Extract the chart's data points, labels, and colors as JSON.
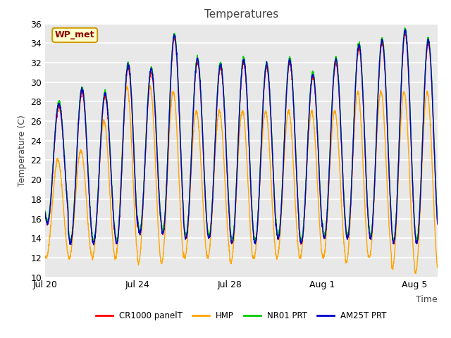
{
  "title": "Temperatures",
  "ylabel": "Temperature (C)",
  "xlabel": "Time",
  "annotation": "WP_met",
  "fig_bg_color": "#ffffff",
  "plot_bg_color": "#e8e8e8",
  "grid_color": "#ffffff",
  "ylim": [
    10,
    36
  ],
  "yticks": [
    10,
    12,
    14,
    16,
    18,
    20,
    22,
    24,
    26,
    28,
    30,
    32,
    34,
    36
  ],
  "xtick_labels": [
    "Jul 20",
    "Jul 24",
    "Jul 28",
    "Aug 1",
    "Aug 5"
  ],
  "xtick_positions": [
    0,
    4,
    8,
    12,
    16
  ],
  "series": [
    {
      "name": "CR1000 panelT",
      "color": "#ff0000",
      "lw": 1.0
    },
    {
      "name": "HMP",
      "color": "#ffa500",
      "lw": 1.0
    },
    {
      "name": "NR01 PRT",
      "color": "#00cc00",
      "lw": 1.0
    },
    {
      "name": "AM25T PRT",
      "color": "#0000cc",
      "lw": 1.0
    }
  ],
  "n_days": 17,
  "seed": 42,
  "day_maxes": [
    27.5,
    29.0,
    28.5,
    31.5,
    31.0,
    34.5,
    32.0,
    31.5,
    32.0,
    31.5,
    32.0,
    30.5,
    32.0,
    33.5,
    34.0,
    35.0,
    34.0
  ],
  "day_mines": [
    15.5,
    13.5,
    13.5,
    13.5,
    14.5,
    14.5,
    14.0,
    14.0,
    13.5,
    13.5,
    14.0,
    13.5,
    14.0,
    14.0,
    14.0,
    13.5,
    13.5
  ],
  "hmp_day_maxes": [
    22.0,
    23.0,
    26.0,
    29.5,
    29.5,
    29.0,
    27.0,
    27.0,
    27.0,
    27.0,
    27.0,
    27.0,
    27.0,
    29.0,
    29.0,
    29.0,
    29.0
  ],
  "hmp_day_mines": [
    12.0,
    12.0,
    12.0,
    12.0,
    11.5,
    11.5,
    12.0,
    12.0,
    11.5,
    12.0,
    12.0,
    12.0,
    12.0,
    11.5,
    12.0,
    11.0,
    10.5
  ]
}
